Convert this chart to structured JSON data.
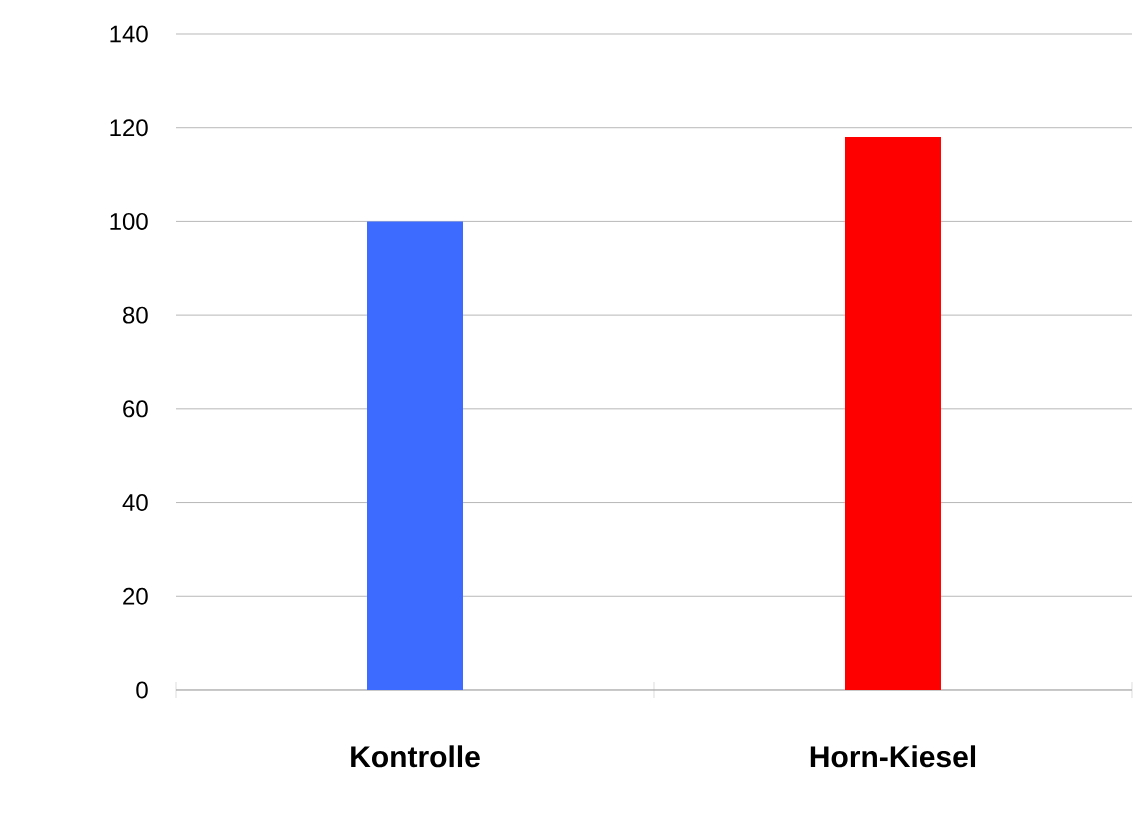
{
  "chart_data": {
    "type": "bar",
    "categories": [
      "**Kontrolle**",
      "**Horn-Kiesel**"
    ],
    "values": [
      100,
      118
    ],
    "colors": [
      "#3d6bff",
      "#ff0000"
    ],
    "ylim": [
      0,
      140
    ],
    "yticks": [
      0,
      20,
      40,
      60,
      80,
      100,
      120,
      140
    ],
    "grid": "y"
  }
}
